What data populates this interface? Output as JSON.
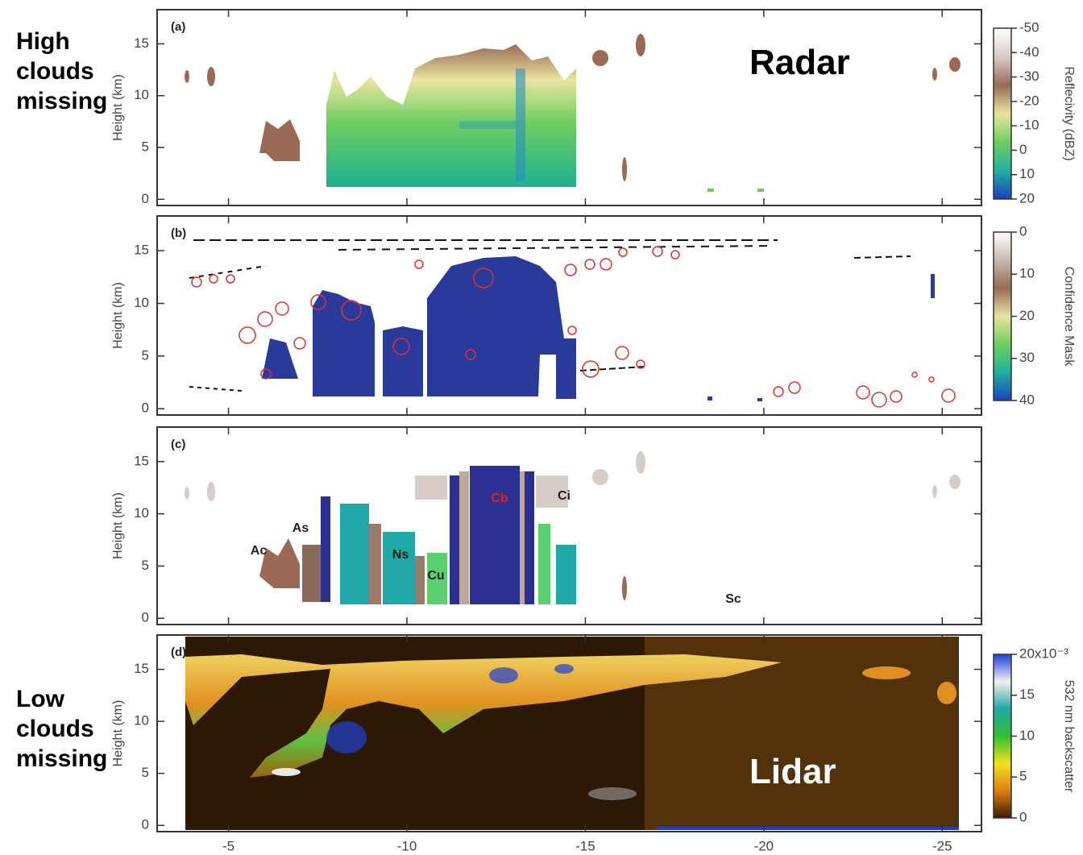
{
  "annotations": {
    "high_clouds": "High clouds missing",
    "low_clouds": "Low clouds missing",
    "radar": "Radar",
    "lidar": "Lidar"
  },
  "chart_data": [
    {
      "type": "image",
      "label": "(a)",
      "ylabel": "Height (km)",
      "xlim": [
        -3,
        -26.1
      ],
      "ylim": [
        -0.6,
        18.3
      ],
      "yticks": [
        0,
        5,
        10,
        15
      ],
      "colorbar": {
        "label": "Reflecivity (dBZ)",
        "lim": [
          20,
          -50
        ],
        "ticks": [
          -50,
          -40,
          -30,
          -20,
          -10,
          0,
          10,
          20
        ],
        "colors": [
          "#ffffff",
          "#d8ccc8",
          "#9a6a55",
          "#e8e4a0",
          "#6ccf60",
          "#20b0a0",
          "#1a40c0"
        ]
      }
    },
    {
      "type": "image",
      "label": "(b)",
      "ylabel": "Height (km)",
      "xlim": [
        -3,
        -26.1
      ],
      "ylim": [
        -0.6,
        18.3
      ],
      "yticks": [
        0,
        5,
        10,
        15
      ],
      "colorbar": {
        "label": "Confidence Mask",
        "lim": [
          40,
          0
        ],
        "ticks": [
          0,
          10,
          20,
          30,
          40
        ],
        "colors": [
          "#ffffff",
          "#c8b8b0",
          "#9a6a55",
          "#e8e4a0",
          "#6ccf60",
          "#20b0a0",
          "#1a40c0"
        ]
      }
    },
    {
      "type": "image",
      "label": "(c)",
      "ylabel": "Height (km)",
      "xlim": [
        -3,
        -26.1
      ],
      "ylim": [
        -0.6,
        18.3
      ],
      "yticks": [
        0,
        5,
        10,
        15
      ],
      "cloud_types": [
        {
          "text": "Ac",
          "color": "#222222"
        },
        {
          "text": "As",
          "color": "#222222"
        },
        {
          "text": "Ns",
          "color": "#222222"
        },
        {
          "text": "Cu",
          "color": "#222222"
        },
        {
          "text": "Cb",
          "color": "#e02020"
        },
        {
          "text": "Ci",
          "color": "#222222"
        },
        {
          "text": "Sc",
          "color": "#222222"
        }
      ]
    },
    {
      "type": "image",
      "label": "(d)",
      "ylabel": "Height (km)",
      "xlim": [
        -3,
        -26.1
      ],
      "ylim": [
        -0.6,
        18.3
      ],
      "yticks": [
        0,
        5,
        10,
        15
      ],
      "xticks": [
        -5,
        -10,
        -15,
        -20,
        -25
      ],
      "colorbar": {
        "label": "532 nm backscatter",
        "lim": [
          0,
          20
        ],
        "ticks": [
          {
            "value": 20,
            "label": "20x10⁻³"
          },
          15,
          10,
          5,
          0
        ],
        "colors": [
          "#1a40e0",
          "#f0f0f0",
          "#20a8a0",
          "#30c030",
          "#f0e020",
          "#e08010",
          "#3a1a00"
        ]
      }
    }
  ]
}
